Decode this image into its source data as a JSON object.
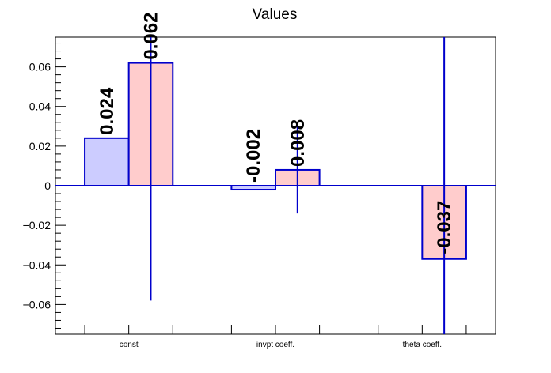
{
  "chart_data": {
    "type": "bar",
    "title": "Values",
    "xlabel": "",
    "ylabel": "",
    "categories": [
      "const",
      "invpt coeff.",
      "theta coeff."
    ],
    "ylim": [
      -0.075,
      0.075
    ],
    "yticks": [
      "0.06",
      "0.04",
      "0.02",
      "0",
      "−0.02",
      "−0.04",
      "−0.06"
    ],
    "ytick_values": [
      0.06,
      0.04,
      0.02,
      0,
      -0.02,
      -0.04,
      -0.06
    ],
    "grid": false,
    "bars": [
      {
        "category": "const",
        "slot": 0,
        "value": 0.024,
        "label": "0.024",
        "error": null,
        "fill": "#ccccff"
      },
      {
        "category": "const",
        "slot": 1,
        "value": 0.062,
        "label": "0.062",
        "error": 0.12,
        "fill": "#ffcccc"
      },
      {
        "category": "invpt coeff.",
        "slot": 0,
        "value": -0.002,
        "label": "-0.002",
        "error": null,
        "fill": "#ccccff"
      },
      {
        "category": "invpt coeff.",
        "slot": 1,
        "value": 0.008,
        "label": "0.008",
        "error": 0.022,
        "fill": "#ffcccc"
      },
      {
        "category": "theta coeff.",
        "slot": 0,
        "value": 0,
        "label": "",
        "error": null,
        "fill": "#ccccff"
      },
      {
        "category": "theta coeff.",
        "slot": 1,
        "value": -0.037,
        "label": "-0.037",
        "error": 0.12,
        "fill": "#ffcccc"
      }
    ],
    "colors": {
      "stroke": "#0000cc",
      "axis": "#000000"
    }
  }
}
